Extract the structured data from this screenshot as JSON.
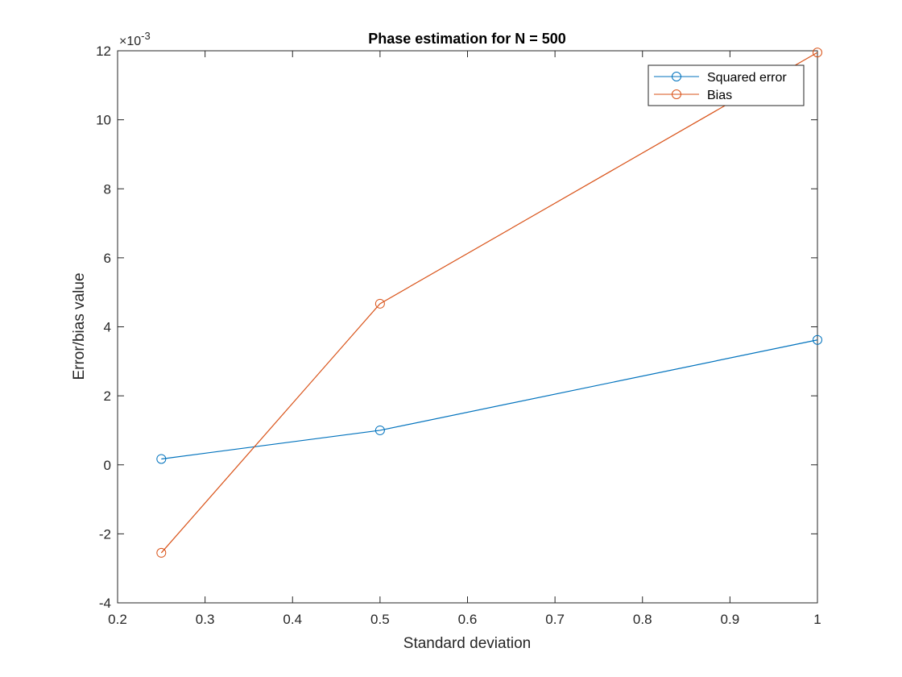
{
  "chart_data": {
    "type": "line",
    "title": "Phase estimation for N = 500",
    "xlabel": "Standard deviation",
    "ylabel": "Error/bias value",
    "y_multiplier": {
      "base": "×10",
      "exponent": "-3"
    },
    "xlim": [
      0.2,
      1.0
    ],
    "ylim": [
      -4,
      12
    ],
    "x_ticks": [
      "0.2",
      "0.3",
      "0.4",
      "0.5",
      "0.6",
      "0.7",
      "0.8",
      "0.9",
      "1"
    ],
    "y_ticks": [
      "-4",
      "-2",
      "0",
      "2",
      "4",
      "6",
      "8",
      "10",
      "12"
    ],
    "grid": false,
    "legend_position": "top-right",
    "x": [
      0.25,
      0.5,
      1.0
    ],
    "series": [
      {
        "name": "Squared error",
        "color": "#0072BD",
        "marker": "circle",
        "values": [
          0.17,
          1.0,
          3.62
        ]
      },
      {
        "name": "Bias",
        "color": "#D95319",
        "marker": "circle",
        "values": [
          -2.55,
          4.67,
          11.95
        ]
      }
    ]
  }
}
